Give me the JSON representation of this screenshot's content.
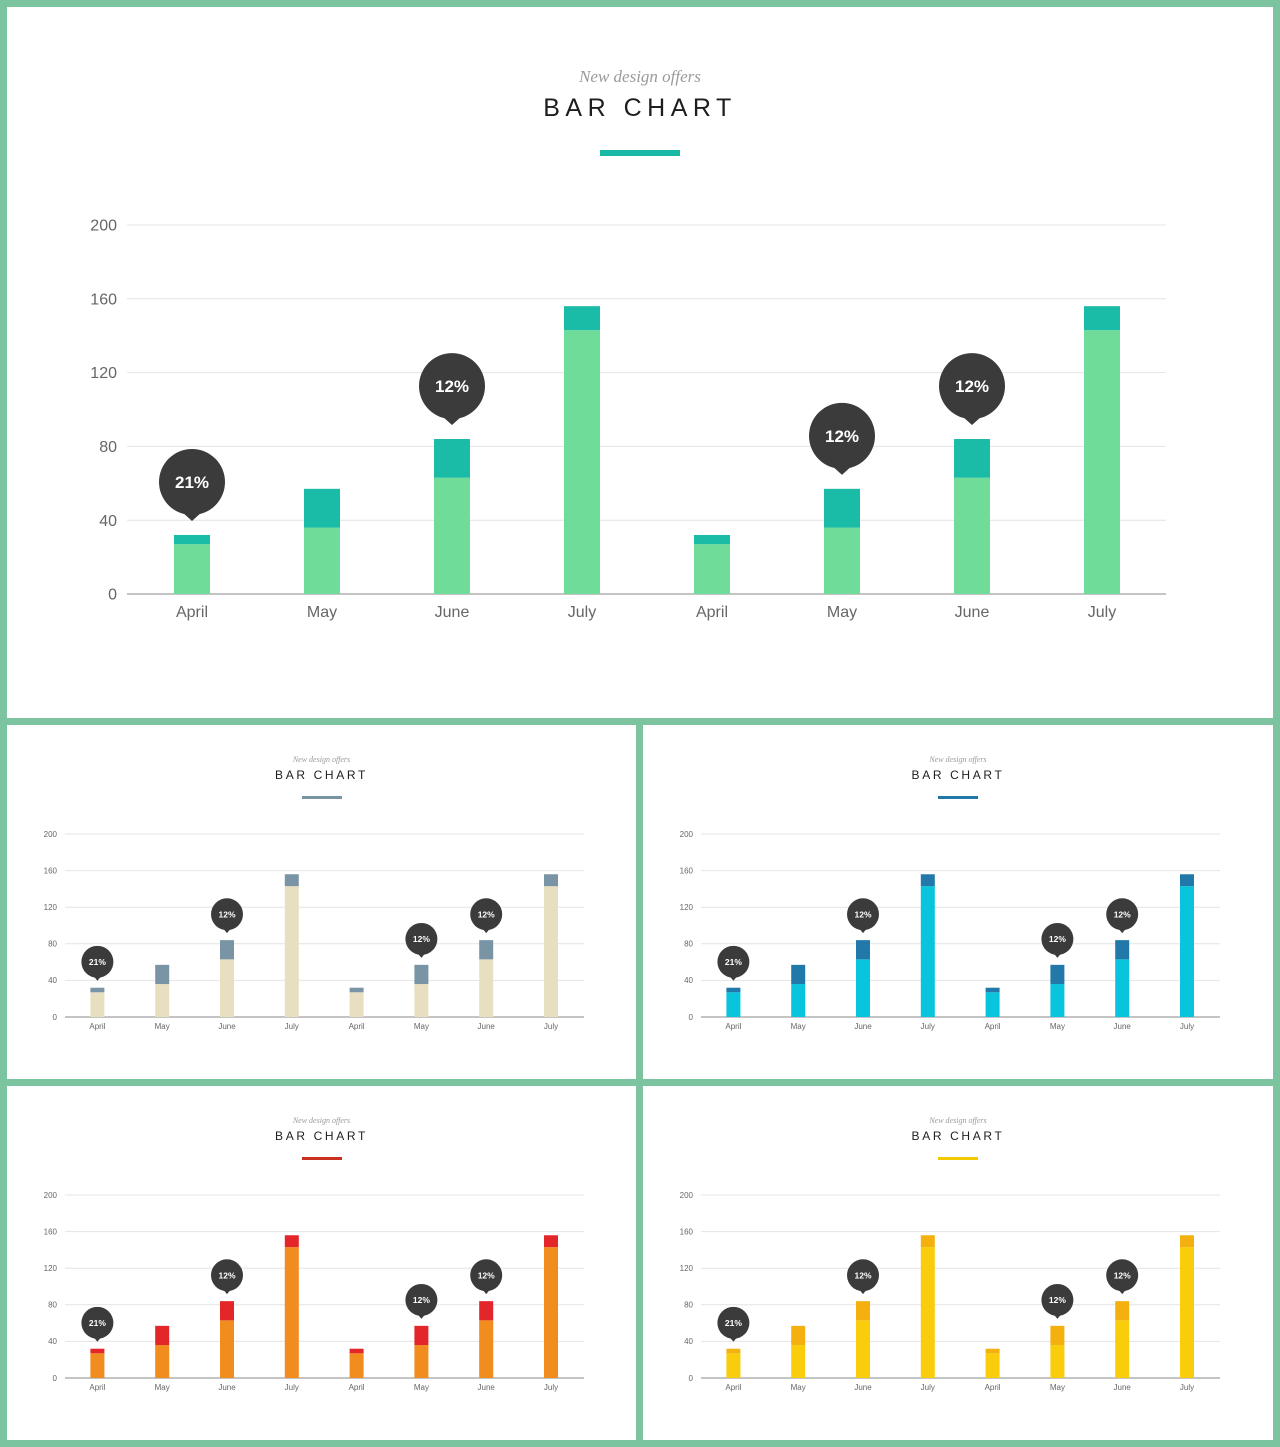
{
  "colors": {
    "border": "#7cc3a0",
    "grid": "#e4e4e4",
    "axis": "#8a8a8a",
    "tick_text": "#666666",
    "bubble": "#3b3b3b"
  },
  "panels": [
    {
      "id": "main",
      "subtitle": "New design offers",
      "title": "BAR CHART",
      "accent": "#1ab9a6",
      "base_color": "#6fdd99",
      "top_color": "#1abba7"
    },
    {
      "id": "beige",
      "subtitle": "New design offers",
      "title": "BAR CHART",
      "accent": "#7995a5",
      "base_color": "#e8dfc1",
      "top_color": "#7995a5"
    },
    {
      "id": "cyan",
      "subtitle": "New design offers",
      "title": "BAR CHART",
      "accent": "#2279a9",
      "base_color": "#08c4dc",
      "top_color": "#2279a9"
    },
    {
      "id": "orange",
      "subtitle": "New design offers",
      "title": "BAR CHART",
      "accent": "#c93020",
      "base_color": "#f18c1e",
      "top_color": "#e3262a"
    },
    {
      "id": "yellow",
      "subtitle": "New design offers",
      "title": "BAR CHART",
      "accent": "#f2c900",
      "base_color": "#f9cd0b",
      "top_color": "#f4b00f"
    }
  ],
  "chart_data": [
    {
      "type": "bar",
      "panel": "main",
      "categories": [
        "April",
        "May",
        "June",
        "July",
        "April",
        "May",
        "June",
        "July"
      ],
      "series": [
        {
          "values": [
            27,
            36,
            63,
            143,
            27,
            36,
            63,
            143
          ]
        },
        {
          "values": [
            5,
            21,
            21,
            13,
            5,
            21,
            21,
            13
          ]
        }
      ],
      "annotations": [
        {
          "index": 0,
          "label": "21%"
        },
        {
          "index": 2,
          "label": "12%"
        },
        {
          "index": 5,
          "label": "12%"
        },
        {
          "index": 6,
          "label": "12%"
        }
      ],
      "yticks": [
        0,
        40,
        80,
        120,
        160,
        200
      ],
      "ylim": [
        0,
        200
      ],
      "grid": true,
      "stacked": true
    },
    {
      "type": "bar",
      "panel": "beige",
      "categories": [
        "April",
        "May",
        "June",
        "July",
        "April",
        "May",
        "June",
        "July"
      ],
      "series": [
        {
          "values": [
            27,
            36,
            63,
            143,
            27,
            36,
            63,
            143
          ]
        },
        {
          "values": [
            5,
            21,
            21,
            13,
            5,
            21,
            21,
            13
          ]
        }
      ],
      "annotations": [
        {
          "index": 0,
          "label": "21%"
        },
        {
          "index": 2,
          "label": "12%"
        },
        {
          "index": 5,
          "label": "12%"
        },
        {
          "index": 6,
          "label": "12%"
        }
      ],
      "yticks": [
        0,
        40,
        80,
        120,
        160,
        200
      ],
      "ylim": [
        0,
        200
      ],
      "grid": true,
      "stacked": true
    },
    {
      "type": "bar",
      "panel": "cyan",
      "categories": [
        "April",
        "May",
        "June",
        "July",
        "April",
        "May",
        "June",
        "July"
      ],
      "series": [
        {
          "values": [
            27,
            36,
            63,
            143,
            27,
            36,
            63,
            143
          ]
        },
        {
          "values": [
            5,
            21,
            21,
            13,
            5,
            21,
            21,
            13
          ]
        }
      ],
      "annotations": [
        {
          "index": 0,
          "label": "21%"
        },
        {
          "index": 2,
          "label": "12%"
        },
        {
          "index": 5,
          "label": "12%"
        },
        {
          "index": 6,
          "label": "12%"
        }
      ],
      "yticks": [
        0,
        40,
        80,
        120,
        160,
        200
      ],
      "ylim": [
        0,
        200
      ],
      "grid": true,
      "stacked": true
    },
    {
      "type": "bar",
      "panel": "orange",
      "categories": [
        "April",
        "May",
        "June",
        "July",
        "April",
        "May",
        "June",
        "July"
      ],
      "series": [
        {
          "values": [
            27,
            36,
            63,
            143,
            27,
            36,
            63,
            143
          ]
        },
        {
          "values": [
            5,
            21,
            21,
            13,
            5,
            21,
            21,
            13
          ]
        }
      ],
      "annotations": [
        {
          "index": 0,
          "label": "21%"
        },
        {
          "index": 2,
          "label": "12%"
        },
        {
          "index": 5,
          "label": "12%"
        },
        {
          "index": 6,
          "label": "12%"
        }
      ],
      "yticks": [
        0,
        40,
        80,
        120,
        160,
        200
      ],
      "ylim": [
        0,
        200
      ],
      "grid": true,
      "stacked": true
    },
    {
      "type": "bar",
      "panel": "yellow",
      "categories": [
        "April",
        "May",
        "June",
        "July",
        "April",
        "May",
        "June",
        "July"
      ],
      "series": [
        {
          "values": [
            27,
            36,
            63,
            143,
            27,
            36,
            63,
            143
          ]
        },
        {
          "values": [
            5,
            21,
            21,
            13,
            5,
            21,
            21,
            13
          ]
        }
      ],
      "annotations": [
        {
          "index": 0,
          "label": "21%"
        },
        {
          "index": 2,
          "label": "12%"
        },
        {
          "index": 5,
          "label": "12%"
        },
        {
          "index": 6,
          "label": "12%"
        }
      ],
      "yticks": [
        0,
        40,
        80,
        120,
        160,
        200
      ],
      "ylim": [
        0,
        200
      ],
      "grid": true,
      "stacked": true
    }
  ]
}
